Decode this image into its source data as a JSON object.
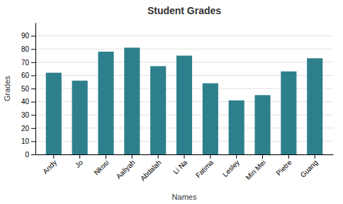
{
  "chart_data": {
    "type": "bar",
    "title": "Student Grades",
    "x_label": "Names",
    "y_label": "Grades",
    "categories": [
      "Andy",
      "Jo",
      "Nkosi",
      "Aaliyah",
      "Abdalah",
      "Li Na",
      "Fatima",
      "Lesley",
      "Min Mei",
      "Pietre",
      "Guang"
    ],
    "values": [
      62,
      56,
      78,
      81,
      67,
      75,
      54,
      41,
      45,
      63,
      73
    ],
    "color": "#2e7f8c",
    "ylim": [
      0,
      100
    ],
    "yticks": [
      0,
      10,
      20,
      30,
      40,
      50,
      60,
      70,
      80,
      90
    ],
    "grid": true
  }
}
